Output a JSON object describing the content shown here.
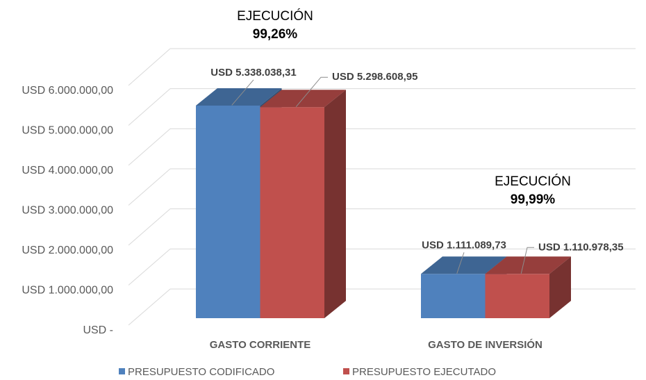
{
  "chart_data": {
    "type": "bar3d",
    "categories": [
      "GASTO CORRIENTE",
      "GASTO DE INVERSIÓN"
    ],
    "series": [
      {
        "name": "PRESUPUESTO CODIFICADO",
        "color": "#4f81bd",
        "values": [
          5338038.31,
          1111089.73
        ],
        "value_labels": [
          "USD 5.338.038,31",
          "USD 1.111.089,73"
        ]
      },
      {
        "name": "PRESUPUESTO EJECUTADO",
        "color": "#c0504d",
        "values": [
          5298608.95,
          1110978.35
        ],
        "value_labels": [
          "USD 5.298.608,95",
          "USD 1.110.978,35"
        ]
      }
    ],
    "annotations": [
      [
        "EJECUCIÓN",
        "99,26%"
      ],
      [
        "EJECUCIÓN",
        "99,99%"
      ]
    ],
    "ylim": [
      0,
      6000000
    ],
    "yticks": [
      {
        "value": 0,
        "label": "USD -"
      },
      {
        "value": 1000000,
        "label": "USD 1.000.000,00"
      },
      {
        "value": 2000000,
        "label": "USD 2.000.000,00"
      },
      {
        "value": 3000000,
        "label": "USD 3.000.000,00"
      },
      {
        "value": 4000000,
        "label": "USD 4.000.000,00"
      },
      {
        "value": 5000000,
        "label": "USD 5.000.000,00"
      },
      {
        "value": 6000000,
        "label": "USD 6.000.000,00"
      }
    ],
    "grid": true,
    "legend": "bottom"
  }
}
